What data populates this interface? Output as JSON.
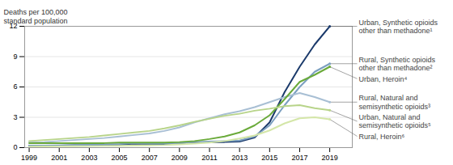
{
  "chart_data": {
    "type": "line",
    "ylabel": "Deaths per 100,000\nstandard population",
    "x": [
      1999,
      2000,
      2001,
      2002,
      2003,
      2004,
      2005,
      2006,
      2007,
      2008,
      2009,
      2010,
      2011,
      2012,
      2013,
      2014,
      2015,
      2016,
      2017,
      2018,
      2019
    ],
    "series": [
      {
        "name": "Urban, Synthetic opioids\nother than methadone¹",
        "color": "#1b3a6b",
        "values": [
          0.2,
          0.2,
          0.2,
          0.25,
          0.25,
          0.3,
          0.3,
          0.4,
          0.35,
          0.35,
          0.4,
          0.5,
          0.55,
          0.55,
          0.6,
          1.0,
          2.5,
          5.5,
          8.0,
          10.2,
          12.0
        ]
      },
      {
        "name": "Rural, Synthetic opioids\nother than methadone²",
        "color": "#7b9fc0",
        "values": [
          0.2,
          0.2,
          0.22,
          0.25,
          0.28,
          0.3,
          0.35,
          0.45,
          0.4,
          0.4,
          0.45,
          0.55,
          0.6,
          0.65,
          0.7,
          1.1,
          2.2,
          4.2,
          6.0,
          7.5,
          8.3
        ]
      },
      {
        "name": "Rural, Natural and\nsemisynthetic opioids³",
        "color": "#a8bfd4",
        "values": [
          0.5,
          0.55,
          0.65,
          0.75,
          0.85,
          0.95,
          1.1,
          1.25,
          1.4,
          1.65,
          2.0,
          2.5,
          2.9,
          3.3,
          3.6,
          4.0,
          4.5,
          5.0,
          5.4,
          5.0,
          4.5
        ]
      },
      {
        "name": "Urban, Heroin⁴",
        "color": "#6aaa3a",
        "values": [
          0.45,
          0.45,
          0.45,
          0.45,
          0.45,
          0.45,
          0.5,
          0.5,
          0.5,
          0.5,
          0.55,
          0.65,
          0.85,
          1.1,
          1.5,
          2.2,
          3.2,
          4.8,
          6.5,
          7.2,
          8.0
        ]
      },
      {
        "name": "Urban, Natural and\nsemisynthetic opioids⁵",
        "color": "#b8d48a",
        "values": [
          0.65,
          0.75,
          0.85,
          0.95,
          1.05,
          1.2,
          1.35,
          1.5,
          1.65,
          1.9,
          2.2,
          2.55,
          2.85,
          3.15,
          3.35,
          3.65,
          3.85,
          4.1,
          4.2,
          3.9,
          3.7
        ]
      },
      {
        "name": "Rural, Heroin⁶",
        "color": "#d4e6a8",
        "values": [
          0.1,
          0.12,
          0.13,
          0.14,
          0.15,
          0.17,
          0.18,
          0.2,
          0.22,
          0.25,
          0.32,
          0.4,
          0.5,
          0.65,
          0.9,
          1.2,
          1.7,
          2.4,
          2.9,
          3.0,
          2.8
        ]
      }
    ],
    "xlim": [
      1998.7,
      2020.5
    ],
    "xticks": [
      1999,
      2001,
      2003,
      2005,
      2007,
      2009,
      2011,
      2013,
      2015,
      2017,
      2019
    ],
    "ylim": [
      0,
      12
    ],
    "yticks": [
      0,
      3,
      6,
      9,
      12
    ],
    "grid": true
  }
}
